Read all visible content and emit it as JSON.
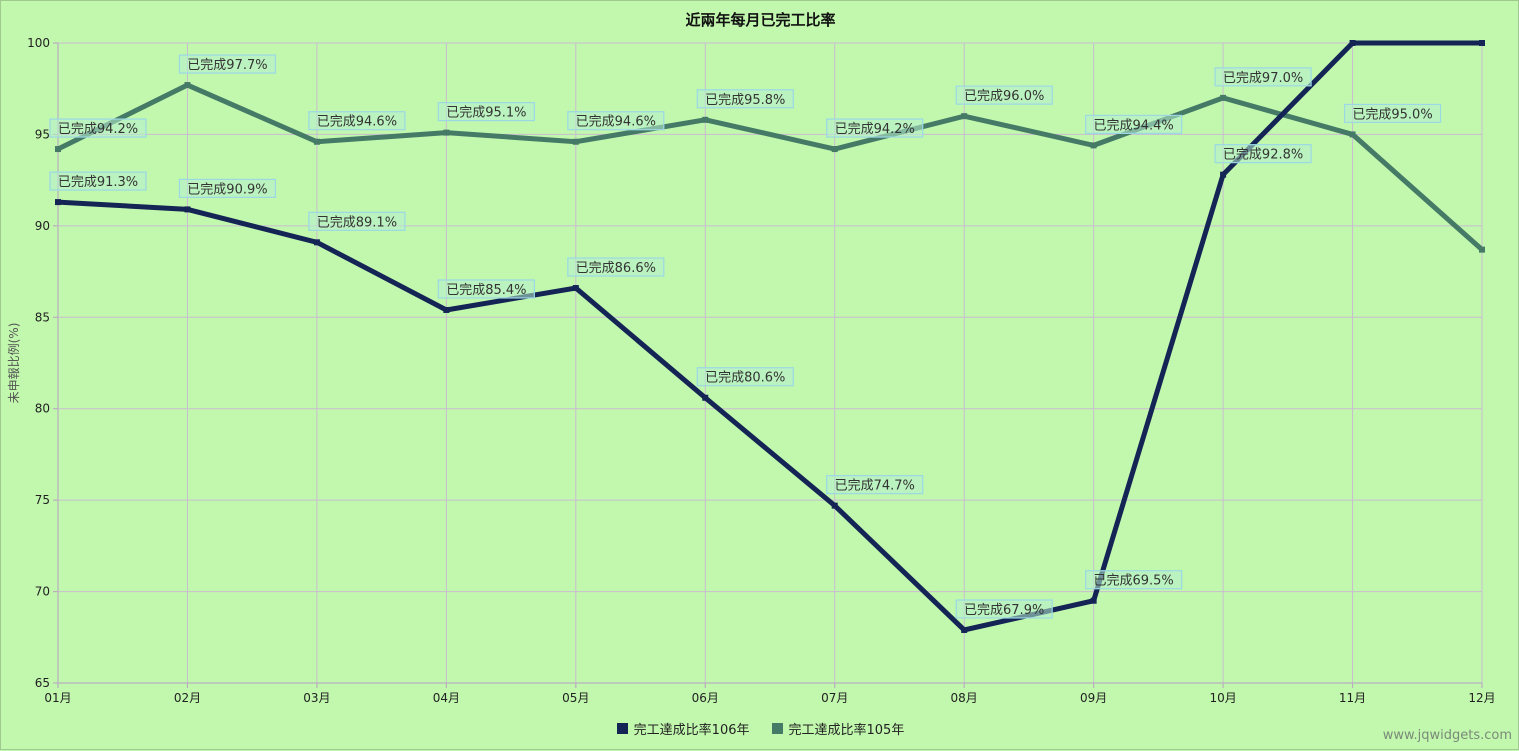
{
  "chart_data": {
    "type": "line",
    "title": "近兩年每月已完工比率",
    "xlabel": "",
    "ylabel": "未申報比例(%)",
    "categories": [
      "01月",
      "02月",
      "03月",
      "04月",
      "05月",
      "06月",
      "07月",
      "08月",
      "09月",
      "10月",
      "11月",
      "12月"
    ],
    "ylim": [
      65,
      100
    ],
    "yticks": [
      65,
      70,
      75,
      80,
      85,
      90,
      95,
      100
    ],
    "grid": true,
    "legend_position": "bottom",
    "series": [
      {
        "name": "完工達成比率106年",
        "color": "#142455",
        "values": [
          91.3,
          90.9,
          89.1,
          85.4,
          86.6,
          80.6,
          74.7,
          67.9,
          69.5,
          92.8,
          100,
          100
        ],
        "labels": [
          "已完成91.3%",
          "已完成90.9%",
          "已完成89.1%",
          "已完成85.4%",
          "已完成86.6%",
          "已完成80.6%",
          "已完成74.7%",
          "已完成67.9%",
          "已完成69.5%",
          "已完成92.8%",
          null,
          null
        ]
      },
      {
        "name": "完工達成比率105年",
        "color": "#457a66",
        "values": [
          94.2,
          97.7,
          94.6,
          95.1,
          94.6,
          95.8,
          94.2,
          96.0,
          94.4,
          97.0,
          95.0,
          88.7
        ],
        "labels": [
          "已完成94.2%",
          "已完成97.7%",
          "已完成94.6%",
          "已完成95.1%",
          "已完成94.6%",
          "已完成95.8%",
          "已完成94.2%",
          "已完成96.0%",
          "已完成94.4%",
          "已完成97.0%",
          "已完成95.0%",
          null
        ]
      }
    ]
  },
  "watermark": "www.jqwidgets.com"
}
